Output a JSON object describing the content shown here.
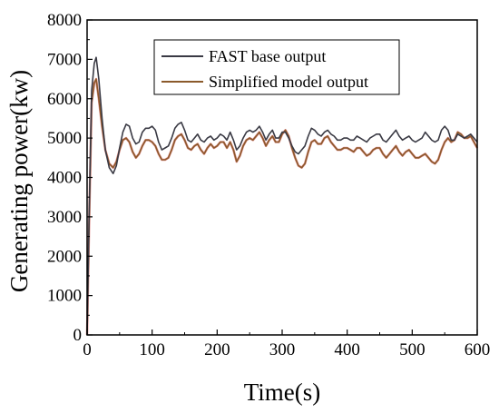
{
  "chart_data": {
    "type": "line",
    "title": "",
    "xlabel": "Time(s)",
    "ylabel": "Generating power(kw)",
    "xlim": [
      0,
      600
    ],
    "ylim": [
      0,
      8000
    ],
    "xticks": [
      0,
      100,
      200,
      300,
      400,
      500,
      600
    ],
    "yticks": [
      0,
      1000,
      2000,
      3000,
      4000,
      5000,
      6000,
      7000,
      8000
    ],
    "grid": false,
    "legend_position": "top-right",
    "series": [
      {
        "name": "FAST base output",
        "color": "#3a3a44",
        "x": [
          0,
          3,
          7,
          11,
          14,
          18,
          23,
          28,
          34,
          40,
          45,
          50,
          55,
          60,
          65,
          70,
          75,
          80,
          85,
          90,
          95,
          100,
          105,
          110,
          115,
          120,
          125,
          130,
          135,
          140,
          145,
          150,
          155,
          160,
          165,
          170,
          175,
          180,
          185,
          190,
          195,
          200,
          205,
          210,
          215,
          220,
          225,
          230,
          235,
          240,
          245,
          250,
          255,
          260,
          265,
          270,
          275,
          280,
          285,
          290,
          295,
          300,
          305,
          310,
          315,
          320,
          325,
          330,
          335,
          340,
          345,
          350,
          355,
          360,
          365,
          370,
          375,
          380,
          385,
          390,
          395,
          400,
          405,
          410,
          415,
          420,
          425,
          430,
          435,
          440,
          445,
          450,
          455,
          460,
          465,
          470,
          475,
          480,
          485,
          490,
          495,
          500,
          505,
          510,
          515,
          520,
          525,
          530,
          535,
          540,
          545,
          550,
          555,
          560,
          565,
          570,
          575,
          580,
          585,
          590,
          595,
          600
        ],
        "values": [
          0,
          3000,
          6200,
          6900,
          7050,
          6500,
          5500,
          4700,
          4250,
          4100,
          4300,
          4750,
          5150,
          5350,
          5300,
          5000,
          4850,
          4900,
          5150,
          5250,
          5250,
          5300,
          5200,
          4900,
          4700,
          4750,
          4800,
          5000,
          5250,
          5350,
          5400,
          5200,
          4950,
          4900,
          5000,
          5100,
          4950,
          4900,
          5000,
          5050,
          4950,
          5000,
          5100,
          5050,
          4950,
          5150,
          4950,
          4700,
          4800,
          5000,
          5150,
          5200,
          5150,
          5200,
          5300,
          5150,
          4950,
          5100,
          5200,
          5000,
          5000,
          5150,
          5150,
          5000,
          4800,
          4650,
          4600,
          4700,
          4800,
          5050,
          5250,
          5200,
          5100,
          5050,
          5150,
          5200,
          5100,
          5050,
          4950,
          4950,
          5000,
          5000,
          4950,
          4950,
          5050,
          5000,
          4950,
          4900,
          5000,
          5050,
          5100,
          5100,
          4950,
          4900,
          5000,
          5100,
          5200,
          5050,
          4950,
          5000,
          5050,
          4950,
          4900,
          4950,
          5000,
          5150,
          5050,
          4950,
          4900,
          4950,
          5200,
          5300,
          5200,
          4950,
          4950,
          5100,
          5050,
          5000,
          5050,
          5100,
          5000,
          4900
        ]
      },
      {
        "name": "Simplified model output",
        "color": "#8b5a2b",
        "accent_color": "#d04040",
        "x": [
          0,
          3,
          7,
          11,
          14,
          18,
          23,
          28,
          34,
          40,
          45,
          50,
          55,
          60,
          65,
          70,
          75,
          80,
          85,
          90,
          95,
          100,
          105,
          110,
          115,
          120,
          125,
          130,
          135,
          140,
          145,
          150,
          155,
          160,
          165,
          170,
          175,
          180,
          185,
          190,
          195,
          200,
          205,
          210,
          215,
          220,
          225,
          230,
          235,
          240,
          245,
          250,
          255,
          260,
          265,
          270,
          275,
          280,
          285,
          290,
          295,
          300,
          305,
          310,
          315,
          320,
          325,
          330,
          335,
          340,
          345,
          350,
          355,
          360,
          365,
          370,
          375,
          380,
          385,
          390,
          395,
          400,
          405,
          410,
          415,
          420,
          425,
          430,
          435,
          440,
          445,
          450,
          455,
          460,
          465,
          470,
          475,
          480,
          485,
          490,
          495,
          500,
          505,
          510,
          515,
          520,
          525,
          530,
          535,
          540,
          545,
          550,
          555,
          560,
          565,
          570,
          575,
          580,
          585,
          590,
          595,
          600
        ],
        "values": [
          0,
          2800,
          5900,
          6400,
          6500,
          6000,
          5300,
          4700,
          4350,
          4250,
          4400,
          4700,
          4950,
          5000,
          4900,
          4650,
          4500,
          4600,
          4800,
          4950,
          4950,
          4900,
          4800,
          4600,
          4450,
          4450,
          4500,
          4700,
          4950,
          5050,
          5100,
          4950,
          4750,
          4700,
          4800,
          4850,
          4700,
          4600,
          4750,
          4850,
          4750,
          4800,
          4900,
          4900,
          4750,
          4900,
          4700,
          4400,
          4550,
          4800,
          4950,
          5000,
          4950,
          5050,
          5150,
          5000,
          4800,
          4950,
          5050,
          4900,
          4900,
          5100,
          5200,
          5050,
          4750,
          4500,
          4300,
          4250,
          4350,
          4650,
          4900,
          4950,
          4850,
          4850,
          5000,
          5050,
          4900,
          4800,
          4700,
          4700,
          4750,
          4750,
          4700,
          4650,
          4750,
          4750,
          4650,
          4550,
          4600,
          4700,
          4750,
          4750,
          4600,
          4500,
          4600,
          4700,
          4800,
          4650,
          4550,
          4650,
          4700,
          4600,
          4500,
          4500,
          4550,
          4600,
          4500,
          4400,
          4350,
          4450,
          4700,
          4900,
          5000,
          4900,
          4950,
          5150,
          5100,
          5000,
          5000,
          5050,
          4900,
          4750
        ]
      }
    ]
  }
}
